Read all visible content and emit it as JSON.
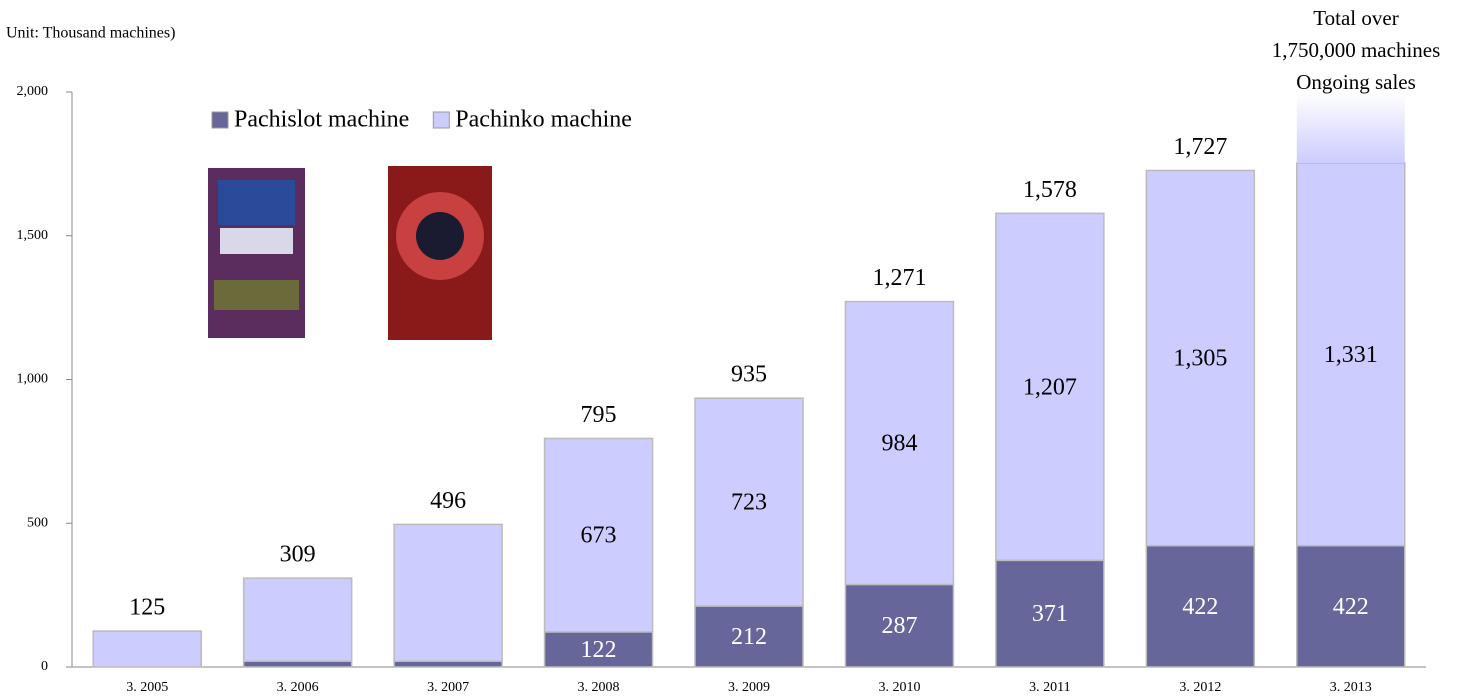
{
  "chart_data": {
    "type": "stacked-bar",
    "axis_label": "Unit: Thousand machines)",
    "annotation": [
      "Total over",
      "1,750,000 machines",
      "Ongoing sales"
    ],
    "categories": [
      "3. 2005",
      "3. 2006",
      "3. 2007",
      "3. 2008",
      "3. 2009",
      "3. 2010",
      "3. 2011",
      "3. 2012",
      "3. 2013"
    ],
    "series": [
      {
        "name": "Pachislot machine",
        "color": "#66669a",
        "values": [
          0,
          20,
          20,
          122,
          212,
          287,
          371,
          422,
          422
        ],
        "value_labels": [
          null,
          null,
          null,
          "122",
          "212",
          "287",
          "371",
          "422",
          "422"
        ]
      },
      {
        "name": "Pachinko machine",
        "color": "#ccccff",
        "values": [
          125,
          289,
          476,
          673,
          723,
          984,
          1207,
          1305,
          1331
        ],
        "value_labels": [
          null,
          null,
          null,
          "673",
          "723",
          "984",
          "1,207",
          "1,305",
          "1,331"
        ]
      }
    ],
    "totals": {
      "values": [
        125,
        309,
        496,
        795,
        935,
        1271,
        1578,
        1727,
        null
      ],
      "value_labels": [
        "125",
        "309",
        "496",
        "795",
        "935",
        "1,271",
        "1,578",
        "1,727",
        null
      ]
    },
    "ylim": [
      0,
      2000
    ],
    "yticks": [
      0,
      500,
      {
        "value": 1000,
        "label": "1,000"
      },
      {
        "value": 1500,
        "label": "1,500"
      },
      {
        "value": 2000,
        "label": "2,000"
      }
    ],
    "grid": false
  }
}
